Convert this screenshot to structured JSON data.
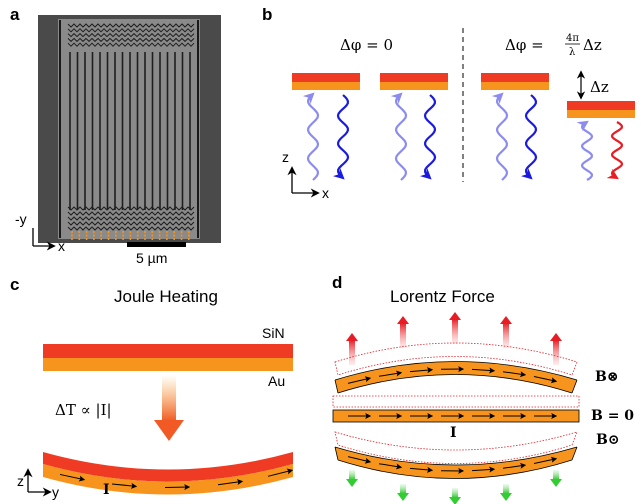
{
  "panels": {
    "a": {
      "label": "a",
      "axis_neg_y": "-y",
      "axis_x": "x",
      "scale_bar": "5 µm"
    },
    "b": {
      "label": "b",
      "phase_left": "Δφ = 0",
      "phase_right_prefix": "Δφ =",
      "phase_right_num": "4π",
      "phase_right_den": "λ",
      "phase_right_suffix": "Δz",
      "delta_z": "Δz",
      "axis_z": "z",
      "axis_x": "x"
    },
    "c": {
      "label": "c",
      "title": "Joule Heating",
      "layer_top": "SiN",
      "layer_bottom": "Au",
      "relation": "ΔT ∝ |I|",
      "current": "I",
      "axis_z": "z",
      "axis_y": "y"
    },
    "d": {
      "label": "d",
      "title": "Lorentz Force",
      "field_in": "B⊗",
      "field_zero": "B = 0",
      "field_out": "B⊙",
      "current": "I"
    }
  },
  "colors": {
    "sin": "#ef3b24",
    "au": "#f7941d",
    "light_blue": "#8c8cf0",
    "dark_blue": "#1a1ae0",
    "red": "#e81c24",
    "green": "#33cc33",
    "orange_marker": "#f7941d"
  }
}
